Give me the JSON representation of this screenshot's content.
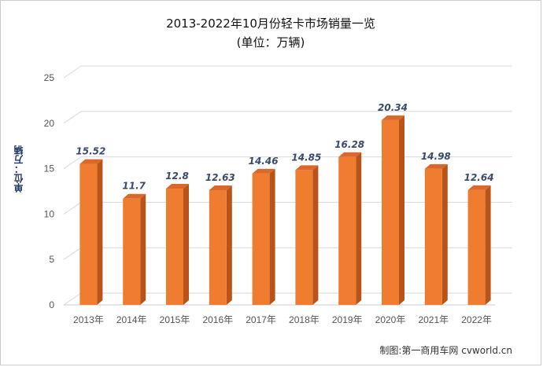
{
  "chart_data": {
    "type": "bar",
    "title": "2013-2022年10月份轻卡市场销量一览",
    "subtitle": "(单位：万辆)",
    "ylabel": "单位：万辆",
    "xlabel": "",
    "categories": [
      "2013年",
      "2014年",
      "2015年",
      "2016年",
      "2017年",
      "2018年",
      "2019年",
      "2020年",
      "2021年",
      "2022年"
    ],
    "values": [
      15.52,
      11.7,
      12.8,
      12.63,
      14.46,
      14.85,
      16.28,
      20.34,
      14.98,
      12.64
    ],
    "value_labels": [
      "15.52",
      "11.7",
      "12.8",
      "12.63",
      "14.46",
      "14.85",
      "16.28",
      "20.34",
      "14.98",
      "12.64"
    ],
    "ylim": [
      0,
      25
    ],
    "yticks": [
      "0",
      "5",
      "10",
      "15",
      "20",
      "25"
    ],
    "grid": true,
    "bar_color": "#f07c2f",
    "bar_side_color": "#b8541a",
    "bar_top_color": "#d9682a"
  },
  "credit": "制图:第一商用车网 cvworld.cn"
}
